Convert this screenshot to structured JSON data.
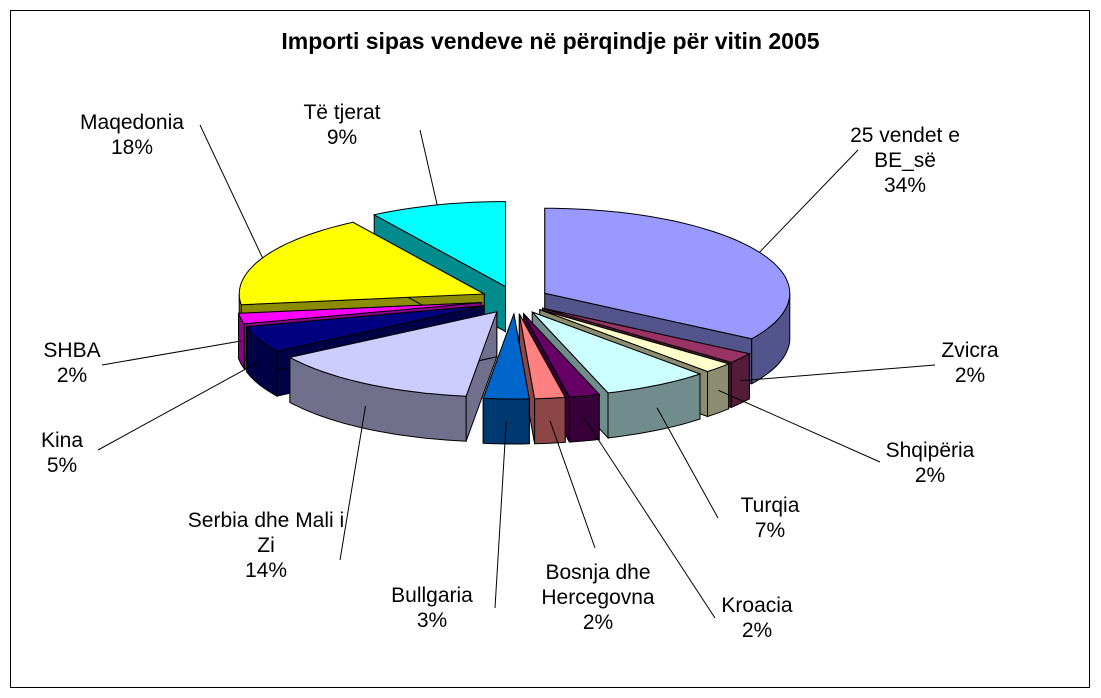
{
  "chart_data": {
    "type": "pie3d",
    "title": "Importi sipas vendeve në përqindje për vitin 2005",
    "categories": [
      "25 vendet e BE_së",
      "Zvicra",
      "Shqipëria",
      "Turqia",
      "Kroacia",
      "Bosnja dhe Hercegovna",
      "Bullgaria",
      "Serbia dhe Mali i Zi",
      "Kina",
      "SHBA",
      "Maqedonia",
      "Të tjerat"
    ],
    "values": [
      34,
      2,
      2,
      7,
      2,
      2,
      3,
      14,
      5,
      2,
      18,
      9
    ],
    "value_labels": [
      "34%",
      "2%",
      "2%",
      "7%",
      "2%",
      "2%",
      "3%",
      "14%",
      "5%",
      "2%",
      "18%",
      "9%"
    ],
    "colors": [
      "#9999ff",
      "#993366",
      "#ffffcc",
      "#ccffff",
      "#660066",
      "#ff8080",
      "#0066cc",
      "#ccccff",
      "#000080",
      "#ff00ff",
      "#ffff00",
      "#00ffff"
    ]
  }
}
